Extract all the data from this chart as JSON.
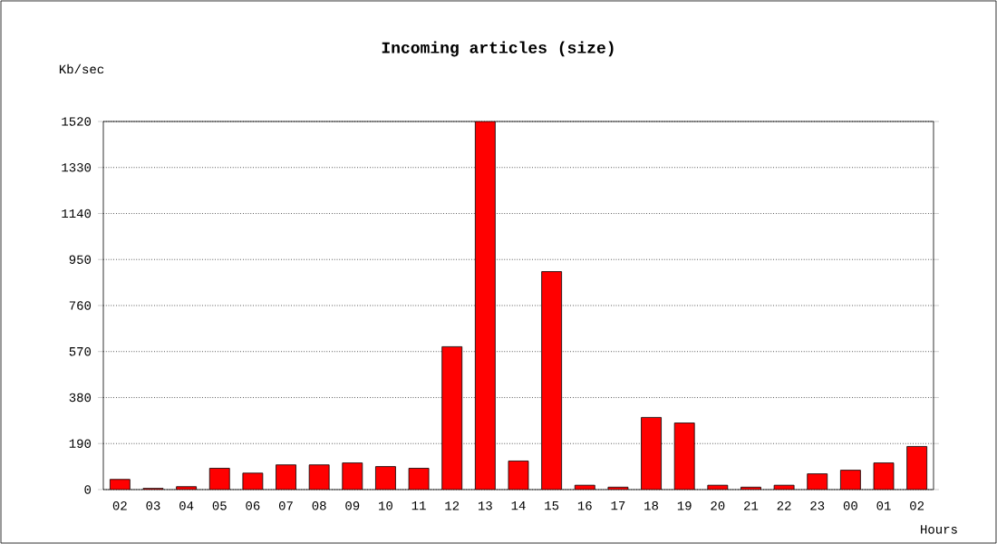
{
  "chart_data": {
    "type": "bar",
    "title": "Incoming articles (size)",
    "ylabel": "Kb/sec",
    "xlabel": "Hours",
    "categories": [
      "02",
      "03",
      "04",
      "05",
      "06",
      "07",
      "08",
      "09",
      "10",
      "11",
      "12",
      "13",
      "14",
      "15",
      "16",
      "17",
      "18",
      "19",
      "20",
      "21",
      "22",
      "23",
      "00",
      "01",
      "02"
    ],
    "values": [
      42,
      5,
      12,
      88,
      68,
      102,
      102,
      110,
      95,
      88,
      590,
      1520,
      118,
      900,
      18,
      10,
      298,
      275,
      18,
      10,
      18,
      65,
      80,
      110,
      178
    ],
    "color": "#ff0000",
    "ylim": [
      0,
      1520
    ],
    "yticks": [
      0,
      190,
      380,
      570,
      760,
      950,
      1140,
      1330,
      1520
    ],
    "grid": "y"
  }
}
